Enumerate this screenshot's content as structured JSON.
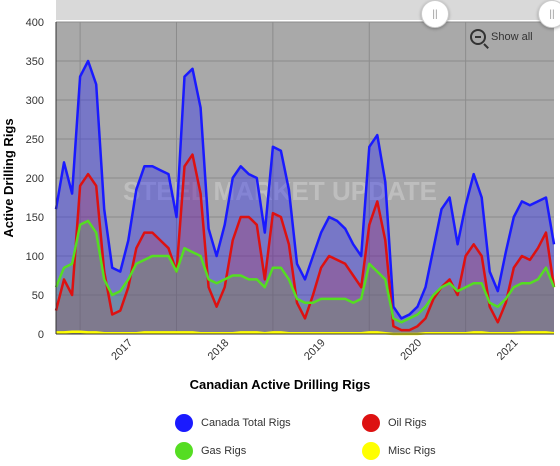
{
  "chart_data": {
    "type": "area",
    "title": "",
    "xlabel": "Canadian Active Drilling Rigs",
    "ylabel": "Active Drilling Rigs",
    "ylim": [
      0,
      400
    ],
    "yticks": [
      0,
      50,
      100,
      150,
      200,
      250,
      300,
      350,
      400
    ],
    "x_tick_labels": [
      "2017",
      "2018",
      "2019",
      "2020",
      "2021"
    ],
    "xlim": [
      "2016-10",
      "2021-12"
    ],
    "grid": true,
    "legend_position": "bottom",
    "watermark": "STEEL MARKET UPDATE",
    "show_all_label": "Show all",
    "months": [
      "2016-10",
      "2016-11",
      "2016-12",
      "2017-01",
      "2017-02",
      "2017-03",
      "2017-04",
      "2017-05",
      "2017-06",
      "2017-07",
      "2017-08",
      "2017-09",
      "2017-10",
      "2017-11",
      "2017-12",
      "2018-01",
      "2018-02",
      "2018-03",
      "2018-04",
      "2018-05",
      "2018-06",
      "2018-07",
      "2018-08",
      "2018-09",
      "2018-10",
      "2018-11",
      "2018-12",
      "2019-01",
      "2019-02",
      "2019-03",
      "2019-04",
      "2019-05",
      "2019-06",
      "2019-07",
      "2019-08",
      "2019-09",
      "2019-10",
      "2019-11",
      "2019-12",
      "2020-01",
      "2020-02",
      "2020-03",
      "2020-04",
      "2020-05",
      "2020-06",
      "2020-07",
      "2020-08",
      "2020-09",
      "2020-10",
      "2020-11",
      "2020-12",
      "2021-01",
      "2021-02",
      "2021-03",
      "2021-04",
      "2021-05",
      "2021-06",
      "2021-07",
      "2021-08",
      "2021-09",
      "2021-10",
      "2021-11",
      "2021-12"
    ],
    "series": [
      {
        "name": "Canada Total Rigs",
        "color": "#1a1aff",
        "values": [
          160,
          220,
          180,
          330,
          350,
          320,
          160,
          85,
          80,
          120,
          185,
          215,
          215,
          210,
          205,
          150,
          330,
          340,
          290,
          135,
          100,
          140,
          200,
          215,
          205,
          200,
          130,
          240,
          235,
          185,
          90,
          70,
          100,
          130,
          150,
          145,
          135,
          115,
          100,
          240,
          255,
          195,
          35,
          20,
          25,
          35,
          60,
          110,
          160,
          175,
          115,
          165,
          205,
          175,
          80,
          55,
          105,
          150,
          170,
          165,
          170,
          175,
          115
        ]
      },
      {
        "name": "Oil Rigs",
        "color": "#dd1111",
        "values": [
          30,
          70,
          50,
          190,
          205,
          190,
          80,
          25,
          30,
          60,
          110,
          130,
          130,
          120,
          110,
          80,
          215,
          230,
          180,
          60,
          35,
          60,
          120,
          150,
          150,
          140,
          70,
          155,
          150,
          115,
          40,
          20,
          50,
          85,
          100,
          95,
          90,
          75,
          60,
          140,
          170,
          120,
          10,
          5,
          5,
          10,
          20,
          45,
          60,
          70,
          50,
          100,
          115,
          100,
          35,
          15,
          40,
          85,
          100,
          95,
          110,
          130,
          60
        ]
      },
      {
        "name": "Gas Rigs",
        "color": "#55dd22",
        "values": [
          60,
          85,
          90,
          140,
          145,
          130,
          70,
          50,
          55,
          70,
          90,
          95,
          100,
          100,
          100,
          80,
          110,
          105,
          100,
          70,
          65,
          70,
          75,
          75,
          70,
          70,
          60,
          85,
          85,
          70,
          45,
          40,
          40,
          45,
          45,
          45,
          45,
          40,
          45,
          90,
          80,
          70,
          20,
          15,
          20,
          25,
          35,
          50,
          60,
          65,
          55,
          60,
          65,
          65,
          40,
          35,
          45,
          60,
          65,
          65,
          70,
          85,
          60
        ]
      },
      {
        "name": "Misc Rigs",
        "color": "#ffff00",
        "values": [
          2,
          2,
          3,
          3,
          2,
          2,
          1,
          1,
          1,
          1,
          1,
          2,
          2,
          2,
          2,
          2,
          2,
          2,
          1,
          1,
          1,
          1,
          1,
          2,
          2,
          2,
          1,
          2,
          2,
          1,
          1,
          1,
          1,
          1,
          1,
          1,
          1,
          1,
          1,
          2,
          2,
          1,
          0,
          0,
          0,
          0,
          1,
          1,
          1,
          1,
          1,
          1,
          2,
          2,
          1,
          1,
          1,
          1,
          2,
          2,
          2,
          2,
          1
        ]
      }
    ]
  },
  "legend": [
    {
      "label": "Canada Total Rigs",
      "color": "#1a1aff"
    },
    {
      "label": "Oil Rigs",
      "color": "#dd1111"
    },
    {
      "label": "Gas Rigs",
      "color": "#55dd22"
    },
    {
      "label": "Misc Rigs",
      "color": "#ffff00"
    }
  ],
  "colors": {
    "plot_bg": "#a9a9a9",
    "grid": "#8c8c8c",
    "navigator": "#d9d9d9"
  }
}
